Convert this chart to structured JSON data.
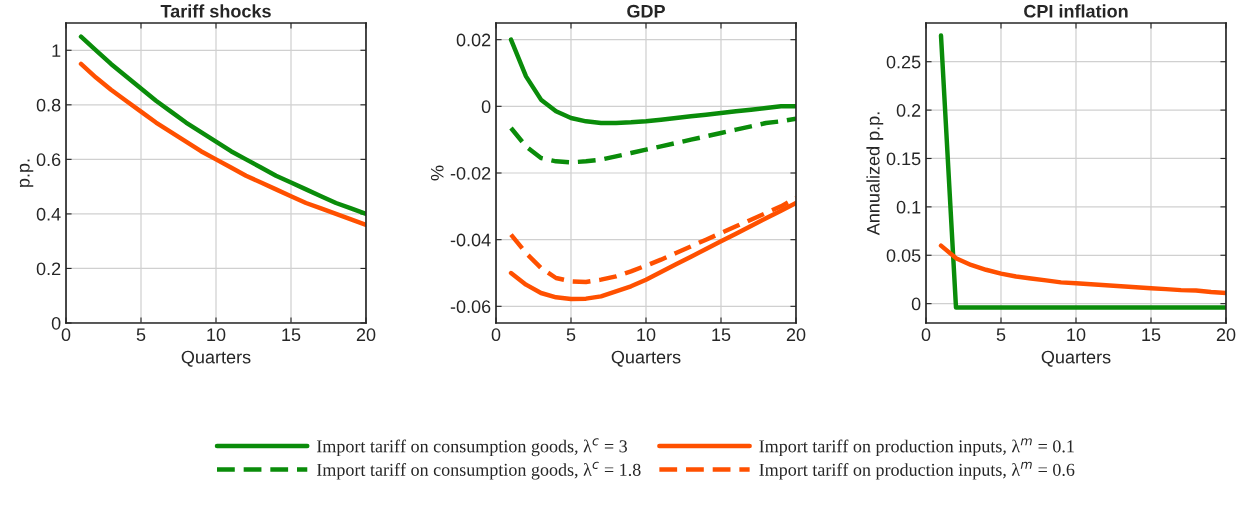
{
  "chart_data": [
    {
      "type": "line",
      "title": "Tariff shocks",
      "xlabel": "Quarters",
      "ylabel": "p.p.",
      "x": [
        1,
        2,
        3,
        4,
        5,
        6,
        7,
        8,
        9,
        10,
        11,
        12,
        13,
        14,
        15,
        16,
        17,
        18,
        19,
        20
      ],
      "xlim": [
        0,
        20
      ],
      "xticks": [
        0,
        5,
        10,
        15,
        20
      ],
      "ylim": [
        0,
        1.1
      ],
      "yticks": [
        0,
        0.2,
        0.4,
        0.6,
        0.8,
        1
      ],
      "grid": true,
      "series": [
        {
          "color": "#0a8c0a",
          "line_style": "solid",
          "values": [
            1.05,
            1.0,
            0.95,
            0.905,
            0.86,
            0.815,
            0.775,
            0.735,
            0.7,
            0.665,
            0.63,
            0.6,
            0.57,
            0.54,
            0.515,
            0.49,
            0.465,
            0.44,
            0.42,
            0.4
          ]
        },
        {
          "color": "#ff5000",
          "line_style": "solid",
          "values": [
            0.95,
            0.9,
            0.855,
            0.815,
            0.775,
            0.735,
            0.7,
            0.665,
            0.63,
            0.6,
            0.57,
            0.54,
            0.515,
            0.49,
            0.465,
            0.44,
            0.42,
            0.4,
            0.38,
            0.36
          ]
        }
      ]
    },
    {
      "type": "line",
      "title": "GDP",
      "xlabel": "Quarters",
      "ylabel": "%",
      "x": [
        1,
        2,
        3,
        4,
        5,
        6,
        7,
        8,
        9,
        10,
        11,
        12,
        13,
        14,
        15,
        16,
        17,
        18,
        19,
        20
      ],
      "xlim": [
        0,
        20
      ],
      "xticks": [
        0,
        5,
        10,
        15,
        20
      ],
      "ylim": [
        -0.065,
        0.025
      ],
      "yticks": [
        -0.06,
        -0.04,
        -0.02,
        0,
        0.02
      ],
      "grid": true,
      "legend": "bottom",
      "series": [
        {
          "name": "Import tariff on consumption goods, λ$^{c}$ = 3",
          "color": "#0a8c0a",
          "line_style": "solid",
          "values": [
            0.02,
            0.009,
            0.002,
            -0.0015,
            -0.0035,
            -0.0045,
            -0.005,
            -0.005,
            -0.0048,
            -0.0045,
            -0.004,
            -0.0035,
            -0.003,
            -0.0025,
            -0.002,
            -0.0015,
            -0.001,
            -0.0005,
            0.0,
            0.0
          ]
        },
        {
          "name": "Import tariff on consumption goods, λ$^{c}$ = 1.8",
          "color": "#0a8c0a",
          "line_style": "dashed",
          "values": [
            -0.0065,
            -0.012,
            -0.0155,
            -0.0165,
            -0.0168,
            -0.0165,
            -0.016,
            -0.015,
            -0.014,
            -0.013,
            -0.012,
            -0.011,
            -0.01,
            -0.009,
            -0.008,
            -0.007,
            -0.006,
            -0.005,
            -0.0045,
            -0.0037
          ]
        },
        {
          "name": "Import tariff on production inputs, λ$^{m}$ = 0.1",
          "color": "#ff5000",
          "line_style": "solid",
          "values": [
            -0.05,
            -0.0535,
            -0.056,
            -0.0573,
            -0.0578,
            -0.0577,
            -0.057,
            -0.0555,
            -0.054,
            -0.052,
            -0.0497,
            -0.0474,
            -0.0451,
            -0.0428,
            -0.0405,
            -0.0382,
            -0.0359,
            -0.0336,
            -0.0313,
            -0.029
          ]
        },
        {
          "name": "Import tariff on production inputs, λ$^{m}$ = 0.6",
          "color": "#ff5000",
          "line_style": "dashed",
          "values": [
            -0.0385,
            -0.044,
            -0.0485,
            -0.0515,
            -0.0525,
            -0.0527,
            -0.052,
            -0.051,
            -0.0495,
            -0.0478,
            -0.046,
            -0.044,
            -0.042,
            -0.04,
            -0.038,
            -0.036,
            -0.034,
            -0.032,
            -0.03,
            -0.0275
          ]
        }
      ]
    },
    {
      "type": "line",
      "title": "CPI inflation",
      "xlabel": "Quarters",
      "ylabel": "Annualized p.p.",
      "x": [
        1,
        2,
        3,
        4,
        5,
        6,
        7,
        8,
        9,
        10,
        11,
        12,
        13,
        14,
        15,
        16,
        17,
        18,
        19,
        20
      ],
      "xlim": [
        0,
        20
      ],
      "xticks": [
        0,
        5,
        10,
        15,
        20
      ],
      "ylim": [
        -0.02,
        0.29
      ],
      "yticks": [
        0,
        0.05,
        0.1,
        0.15,
        0.2,
        0.25
      ],
      "grid": true,
      "series": [
        {
          "color": "#0a8c0a",
          "line_style": "solid",
          "values": [
            0.277,
            -0.004,
            -0.004,
            -0.004,
            -0.004,
            -0.004,
            -0.004,
            -0.004,
            -0.004,
            -0.004,
            -0.004,
            -0.004,
            -0.004,
            -0.004,
            -0.004,
            -0.004,
            -0.004,
            -0.004,
            -0.004,
            -0.004
          ]
        },
        {
          "color": "#ff5000",
          "line_style": "solid",
          "values": [
            0.06,
            0.047,
            0.04,
            0.035,
            0.031,
            0.028,
            0.026,
            0.024,
            0.022,
            0.021,
            0.02,
            0.019,
            0.018,
            0.017,
            0.016,
            0.015,
            0.014,
            0.0135,
            0.012,
            0.011
          ]
        }
      ]
    }
  ]
}
